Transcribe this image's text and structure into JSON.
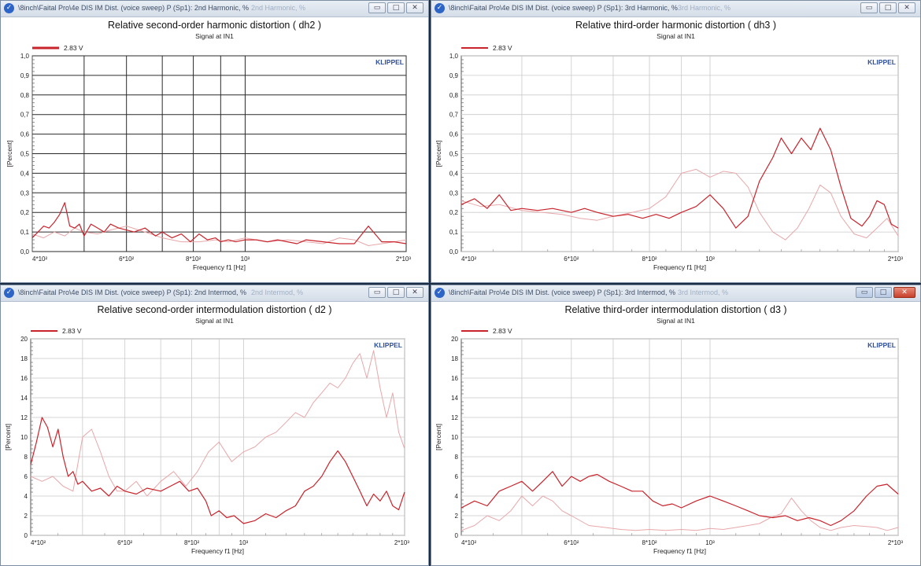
{
  "windows": [
    {
      "id": "dh2",
      "window_title": "\\8inch\\Faital Pro\\4e DIS IM Dist. (voice sweep) P (Sp1): 2nd Harmonic, %",
      "ghost_title": "2nd Harmonic, %",
      "active": false,
      "chart_data": {
        "type": "line",
        "title": "Relative second-order harmonic distortion   ( dh2 )",
        "subtitle": "Signal at IN1",
        "xlabel": "Frequency f1  [Hz]",
        "ylabel": "[Percent]",
        "xscale": "log",
        "xlim": [
          400,
          2000
        ],
        "ylim": [
          0,
          1.0
        ],
        "yticks": [
          0,
          0.1,
          0.2,
          0.3,
          0.4,
          0.5,
          0.6,
          0.7,
          0.8,
          0.9,
          1.0
        ],
        "ytick_labels": [
          "0,0",
          "0,1",
          "0,2",
          "0,3",
          "0,4",
          "0,5",
          "0,6",
          "0,7",
          "0,8",
          "0,9",
          "1,0"
        ],
        "xticks": [
          400,
          600,
          800,
          1000,
          2000
        ],
        "xtick_labels": [
          "4*10²",
          "6*10²",
          "8*10²",
          "10³",
          "2*10³"
        ],
        "grid_style": "dark",
        "legend": "top-left",
        "legend_label": "2.83 V",
        "brand": "KLIPPEL",
        "series": [
          {
            "name": "2.83 V",
            "color": "#c9232b",
            "x": [
              400,
              410,
              420,
              430,
              440,
              450,
              460,
              470,
              480,
              490,
              500,
              515,
              530,
              545,
              560,
              580,
              600,
              620,
              650,
              680,
              700,
              730,
              760,
              790,
              820,
              850,
              880,
              900,
              930,
              960,
              1000,
              1050,
              1100,
              1150,
              1200,
              1250,
              1300,
              1400,
              1500,
              1600,
              1700,
              1800,
              1900,
              2000
            ],
            "y": [
              0.07,
              0.1,
              0.13,
              0.12,
              0.15,
              0.19,
              0.25,
              0.13,
              0.12,
              0.14,
              0.08,
              0.14,
              0.12,
              0.1,
              0.14,
              0.12,
              0.11,
              0.1,
              0.12,
              0.08,
              0.1,
              0.07,
              0.09,
              0.05,
              0.09,
              0.06,
              0.07,
              0.05,
              0.06,
              0.05,
              0.06,
              0.06,
              0.05,
              0.06,
              0.05,
              0.04,
              0.06,
              0.05,
              0.04,
              0.04,
              0.13,
              0.05,
              0.05,
              0.04
            ]
          },
          {
            "name": "",
            "color": "#e8a7aa",
            "x": [
              400,
              420,
              440,
              460,
              480,
              500,
              530,
              560,
              600,
              650,
              700,
              760,
              820,
              880,
              930,
              1000,
              1100,
              1200,
              1300,
              1400,
              1500,
              1600,
              1700,
              1800,
              1900,
              2000
            ],
            "y": [
              0.09,
              0.07,
              0.1,
              0.08,
              0.12,
              0.1,
              0.09,
              0.11,
              0.13,
              0.1,
              0.07,
              0.05,
              0.05,
              0.06,
              0.05,
              0.07,
              0.05,
              0.06,
              0.05,
              0.04,
              0.07,
              0.06,
              0.03,
              0.04,
              0.05,
              0.06
            ]
          }
        ]
      }
    },
    {
      "id": "dh3",
      "window_title": "\\8inch\\Faital Pro\\4e DIS IM Dist. (voice sweep) P (Sp1): 3rd Harmonic, %",
      "ghost_title": "3rd Harmonic, %",
      "active": false,
      "chart_data": {
        "type": "line",
        "title": "Relative third-order harmonic distortion   ( dh3 )",
        "subtitle": "Signal at IN1",
        "xlabel": "Frequency f1  [Hz]",
        "ylabel": "[Percent]",
        "xscale": "log",
        "xlim": [
          400,
          2000
        ],
        "ylim": [
          0,
          1.0
        ],
        "yticks": [
          0,
          0.1,
          0.2,
          0.3,
          0.4,
          0.5,
          0.6,
          0.7,
          0.8,
          0.9,
          1.0
        ],
        "ytick_labels": [
          "0,0",
          "0,1",
          "0,2",
          "0,3",
          "0,4",
          "0,5",
          "0,6",
          "0,7",
          "0,8",
          "0,9",
          "1,0"
        ],
        "xticks": [
          400,
          600,
          800,
          1000,
          2000
        ],
        "xtick_labels": [
          "4*10²",
          "6*10²",
          "8*10²",
          "10³",
          "2*10³"
        ],
        "grid_style": "light",
        "legend": "top-left",
        "legend_label": "2.83 V",
        "brand": "KLIPPEL",
        "series": [
          {
            "name": "2.83 V",
            "color": "#c9232b",
            "x": [
              400,
              420,
              440,
              460,
              480,
              500,
              530,
              560,
              600,
              630,
              660,
              700,
              740,
              780,
              820,
              860,
              900,
              950,
              1000,
              1050,
              1100,
              1150,
              1200,
              1260,
              1300,
              1350,
              1400,
              1450,
              1500,
              1560,
              1620,
              1680,
              1750,
              1800,
              1850,
              1900,
              1950,
              2000
            ],
            "y": [
              0.24,
              0.27,
              0.22,
              0.29,
              0.21,
              0.22,
              0.21,
              0.22,
              0.2,
              0.22,
              0.2,
              0.18,
              0.19,
              0.17,
              0.19,
              0.17,
              0.2,
              0.23,
              0.29,
              0.22,
              0.12,
              0.18,
              0.36,
              0.48,
              0.58,
              0.5,
              0.58,
              0.52,
              0.63,
              0.52,
              0.33,
              0.17,
              0.13,
              0.18,
              0.26,
              0.24,
              0.14,
              0.12
            ]
          },
          {
            "name": "",
            "color": "#e8a7aa",
            "x": [
              400,
              430,
              460,
              500,
              540,
              580,
              620,
              660,
              700,
              750,
              800,
              850,
              900,
              950,
              1000,
              1050,
              1100,
              1150,
              1200,
              1260,
              1320,
              1380,
              1440,
              1500,
              1560,
              1620,
              1700,
              1780,
              1850,
              1920,
              2000
            ],
            "y": [
              0.26,
              0.23,
              0.24,
              0.21,
              0.2,
              0.19,
              0.17,
              0.16,
              0.18,
              0.2,
              0.22,
              0.28,
              0.4,
              0.42,
              0.38,
              0.41,
              0.4,
              0.33,
              0.2,
              0.1,
              0.06,
              0.12,
              0.22,
              0.34,
              0.3,
              0.18,
              0.09,
              0.07,
              0.12,
              0.17,
              0.08
            ]
          }
        ]
      }
    },
    {
      "id": "d2",
      "window_title": "\\8inch\\Faital Pro\\4e DIS IM Dist. (voice sweep) P (Sp1): 2nd Intermod, %",
      "ghost_title": "2nd Intermod, %",
      "active": false,
      "chart_data": {
        "type": "line",
        "title": "Relative second-order intermodulation distortion    ( d2 )",
        "subtitle": "Signal at IN1",
        "xlabel": "Frequency f1  [Hz]",
        "ylabel": "[Percent]",
        "xscale": "log",
        "xlim": [
          400,
          2000
        ],
        "ylim": [
          0,
          20
        ],
        "yticks": [
          0,
          2,
          4,
          6,
          8,
          10,
          12,
          14,
          16,
          18,
          20
        ],
        "ytick_labels": [
          "0",
          "2",
          "4",
          "6",
          "8",
          "10",
          "12",
          "14",
          "16",
          "18",
          "20"
        ],
        "xticks": [
          400,
          600,
          800,
          1000,
          2000
        ],
        "xtick_labels": [
          "4*10²",
          "6*10²",
          "8*10²",
          "10³",
          "2*10³"
        ],
        "grid_style": "light",
        "legend": "top-left",
        "legend_label": "2.83 V",
        "brand": "KLIPPEL",
        "series": [
          {
            "name": "2.83 V",
            "color": "#c9232b",
            "x": [
              400,
              410,
              420,
              430,
              440,
              450,
              460,
              470,
              480,
              490,
              500,
              520,
              540,
              560,
              580,
              600,
              630,
              660,
              700,
              730,
              760,
              790,
              820,
              850,
              870,
              900,
              930,
              960,
              1000,
              1050,
              1100,
              1150,
              1200,
              1250,
              1300,
              1350,
              1400,
              1450,
              1500,
              1550,
              1600,
              1650,
              1700,
              1750,
              1800,
              1850,
              1900,
              1950,
              2000
            ],
            "y": [
              7.2,
              9.5,
              12.0,
              11.0,
              9.0,
              10.8,
              8.0,
              6.0,
              6.5,
              5.2,
              5.5,
              4.5,
              4.8,
              4.0,
              5.0,
              4.5,
              4.2,
              4.8,
              4.5,
              5.0,
              5.5,
              4.5,
              4.8,
              3.5,
              2.0,
              2.5,
              1.8,
              2.0,
              1.2,
              1.5,
              2.2,
              1.8,
              2.5,
              3.0,
              4.5,
              5.0,
              6.0,
              7.5,
              8.6,
              7.5,
              6.0,
              4.5,
              3.0,
              4.2,
              3.5,
              4.5,
              3.0,
              2.6,
              4.4
            ]
          },
          {
            "name": "",
            "color": "#e8a7aa",
            "x": [
              400,
              420,
              440,
              460,
              480,
              500,
              520,
              540,
              560,
              580,
              600,
              630,
              660,
              700,
              740,
              780,
              820,
              860,
              900,
              950,
              1000,
              1050,
              1100,
              1150,
              1200,
              1250,
              1300,
              1350,
              1400,
              1450,
              1500,
              1550,
              1600,
              1650,
              1700,
              1750,
              1800,
              1850,
              1900,
              1950,
              2000
            ],
            "y": [
              6.0,
              5.5,
              6.0,
              5.0,
              4.5,
              10.0,
              10.8,
              8.5,
              6.0,
              4.5,
              4.5,
              5.5,
              4.0,
              5.5,
              6.5,
              5.0,
              6.5,
              8.5,
              9.5,
              7.5,
              8.5,
              9.0,
              10.0,
              10.5,
              11.5,
              12.5,
              12.0,
              13.5,
              14.5,
              15.5,
              15.0,
              16.0,
              17.5,
              18.5,
              16.0,
              18.8,
              15.0,
              12.0,
              14.5,
              10.5,
              8.8
            ]
          }
        ]
      }
    },
    {
      "id": "d3",
      "window_title": "\\8inch\\Faital Pro\\4e DIS IM Dist. (voice sweep) P (Sp1): 3rd Intermod, %",
      "ghost_title": "3rd Intermod, %",
      "active": true,
      "chart_data": {
        "type": "line",
        "title": "Relative third-order intermodulation distortion   ( d3 )",
        "subtitle": "Signal at IN1",
        "xlabel": "Frequency f1  [Hz]",
        "ylabel": "[Percent]",
        "xscale": "log",
        "xlim": [
          400,
          2000
        ],
        "ylim": [
          0,
          20
        ],
        "yticks": [
          0,
          2,
          4,
          6,
          8,
          10,
          12,
          14,
          16,
          18,
          20
        ],
        "ytick_labels": [
          "0",
          "2",
          "4",
          "6",
          "8",
          "10",
          "12",
          "14",
          "16",
          "18",
          "20"
        ],
        "xticks": [
          400,
          600,
          800,
          1000,
          2000
        ],
        "xtick_labels": [
          "4*10²",
          "6*10²",
          "8*10²",
          "10³",
          "2*10³"
        ],
        "grid_style": "light",
        "legend": "top-left",
        "legend_label": "2.83 V",
        "brand": "KLIPPEL",
        "series": [
          {
            "name": "2.83 V",
            "color": "#c9232b",
            "x": [
              400,
              420,
              440,
              460,
              480,
              500,
              520,
              540,
              560,
              580,
              600,
              620,
              640,
              660,
              690,
              720,
              750,
              780,
              810,
              840,
              870,
              900,
              950,
              1000,
              1050,
              1100,
              1150,
              1200,
              1260,
              1320,
              1380,
              1440,
              1500,
              1560,
              1620,
              1700,
              1780,
              1850,
              1920,
              2000
            ],
            "y": [
              2.8,
              3.5,
              3.0,
              4.5,
              5.0,
              5.5,
              4.5,
              5.5,
              6.5,
              5.0,
              6.0,
              5.5,
              6.0,
              6.2,
              5.5,
              5.0,
              4.5,
              4.5,
              3.5,
              3.0,
              3.2,
              2.8,
              3.5,
              4.0,
              3.5,
              3.0,
              2.5,
              2.0,
              1.8,
              2.0,
              1.5,
              1.8,
              1.5,
              1.0,
              1.5,
              2.5,
              4.0,
              5.0,
              5.2,
              4.2
            ]
          },
          {
            "name": "",
            "color": "#e8a7aa",
            "x": [
              400,
              420,
              440,
              460,
              480,
              500,
              520,
              540,
              560,
              580,
              600,
              640,
              680,
              720,
              760,
              800,
              850,
              900,
              950,
              1000,
              1050,
              1100,
              1150,
              1200,
              1250,
              1300,
              1350,
              1400,
              1450,
              1500,
              1560,
              1620,
              1700,
              1780,
              1850,
              1920,
              2000
            ],
            "y": [
              0.5,
              1.0,
              2.0,
              1.5,
              2.5,
              4.0,
              3.0,
              4.0,
              3.5,
              2.5,
              2.0,
              1.0,
              0.8,
              0.6,
              0.5,
              0.6,
              0.5,
              0.6,
              0.5,
              0.7,
              0.6,
              0.8,
              1.0,
              1.2,
              1.8,
              2.2,
              3.8,
              2.5,
              1.5,
              0.8,
              0.5,
              0.8,
              1.0,
              0.9,
              0.8,
              0.5,
              0.8
            ]
          }
        ]
      }
    }
  ]
}
